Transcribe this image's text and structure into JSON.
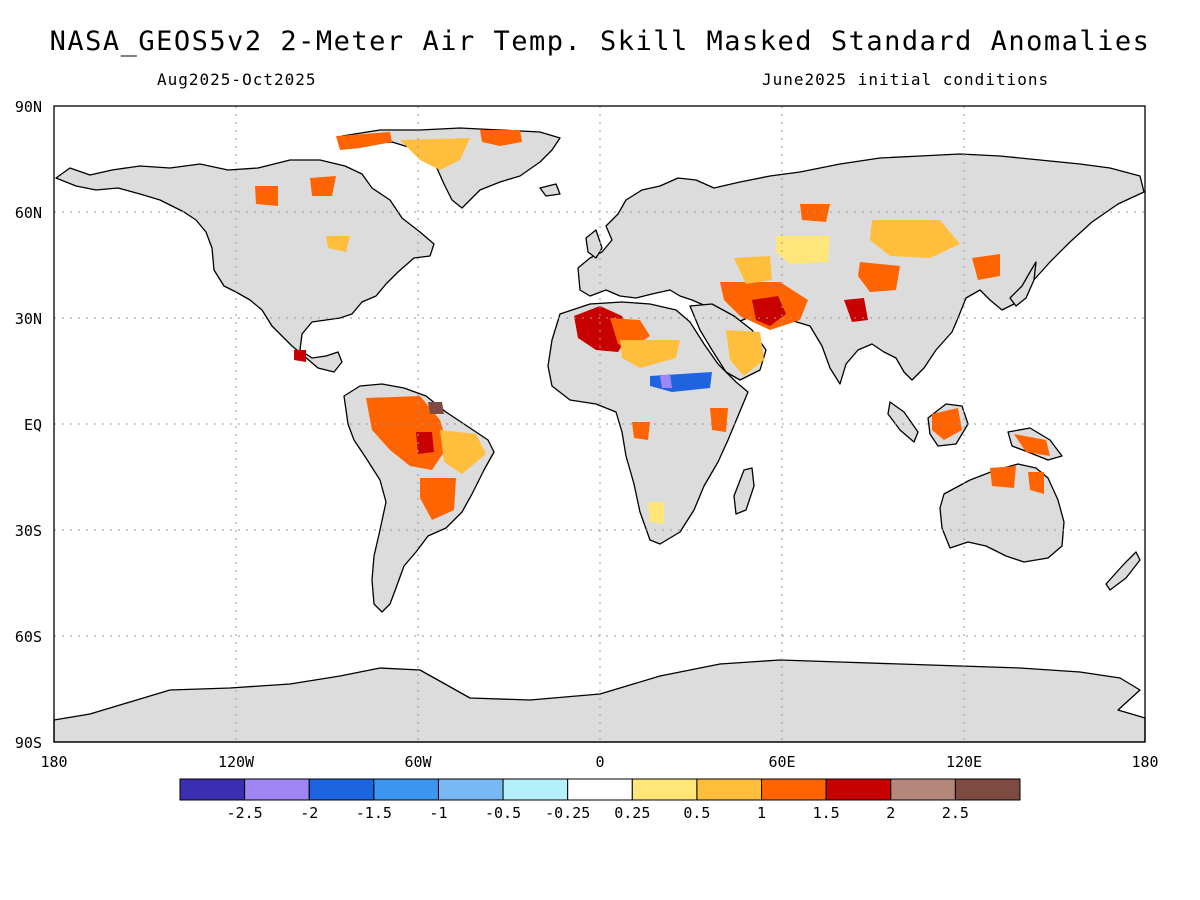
{
  "title": "NASA_GEOS5v2 2-Meter Air Temp. Skill Masked Standard Anomalies",
  "subtitle_left": "Aug2025-Oct2025",
  "subtitle_right": "June2025 initial conditions",
  "lat_labels": [
    "90N",
    "60N",
    "30N",
    "EQ",
    "30S",
    "60S",
    "90S"
  ],
  "lon_labels": [
    "180",
    "120W",
    "60W",
    "0",
    "60E",
    "120E",
    "180"
  ],
  "colorbar": {
    "colors": [
      "#3c2eb0",
      "#9e86f5",
      "#1e64e0",
      "#3c96f0",
      "#78b9f5",
      "#b4f0fa",
      "#ffffff",
      "#ffe678",
      "#ffbe3c",
      "#ff6400",
      "#c80000",
      "#b4877a",
      "#7d4b41"
    ],
    "tick_labels": [
      "-2.5",
      "-2",
      "-1.5",
      "-1",
      "-0.5",
      "-0.25",
      "0.25",
      "0.5",
      "1",
      "1.5",
      "2",
      "2.5"
    ]
  },
  "map": {
    "land_color": "#dcdcdc",
    "ocean_color": "#ffffff",
    "grid": true,
    "projection": "equirectangular"
  }
}
